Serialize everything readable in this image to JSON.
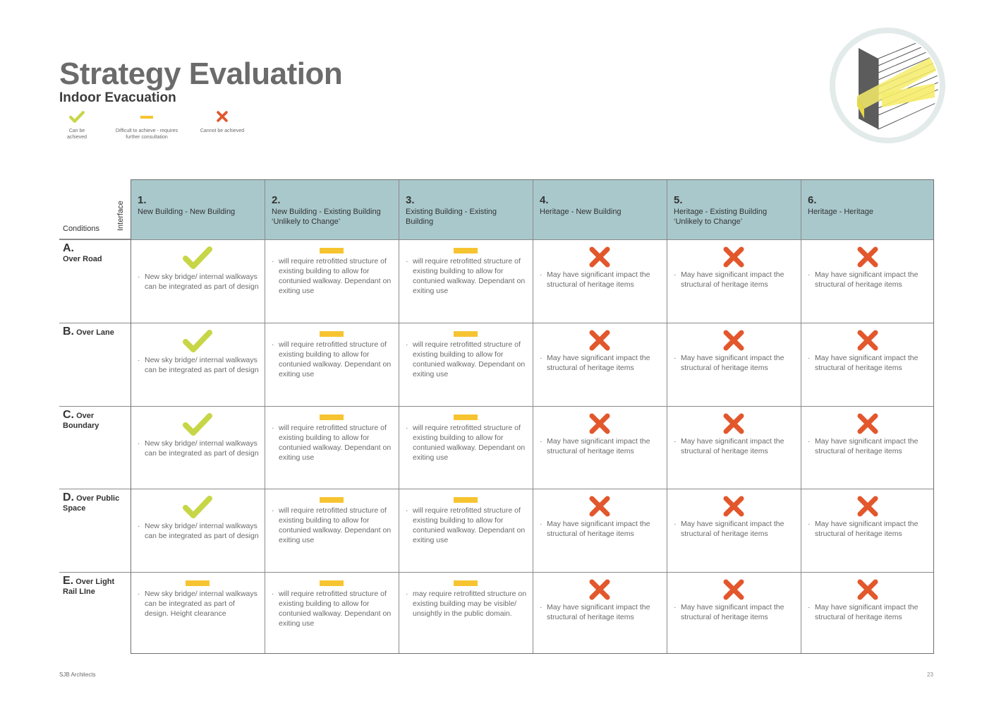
{
  "title": "Strategy Evaluation",
  "subtitle": "Indoor Evacuation",
  "legend": [
    {
      "symbol": "check",
      "label": "Can be achieved"
    },
    {
      "symbol": "dash",
      "label": "Difficult to achieve - requires further consultation"
    },
    {
      "symbol": "cross",
      "label": "Cannot be achieved"
    }
  ],
  "colors": {
    "check": "#c7d646",
    "dash": "#f7c431",
    "cross": "#e2572c",
    "header": "#a9c8cc"
  },
  "table": {
    "conditions_label": "Conditions",
    "interface_label": "Interface",
    "columns": [
      {
        "num": "1.",
        "label": "New Building - New Building"
      },
      {
        "num": "2.",
        "label": "New Building - Existing Building ‘Unlikely to Change’"
      },
      {
        "num": "3.",
        "label": "Existing Building - Existing Building"
      },
      {
        "num": "4.",
        "label": "Heritage - New Building"
      },
      {
        "num": "5.",
        "label": "Heritage - Existing Building ‘Unlikely to Change’"
      },
      {
        "num": "6.",
        "label": "Heritage - Heritage"
      }
    ],
    "rows": [
      {
        "letter": "A.",
        "label": "Over Road",
        "cells": [
          {
            "status": "check",
            "note": "New sky bridge/ internal walkways can be integrated as part of design"
          },
          {
            "status": "dash",
            "note": "will require retrofitted structure of existing building to allow for contunied walkway. Dependant on exiting use"
          },
          {
            "status": "dash",
            "note": "will require retrofitted structure of existing building to allow for contunied walkway. Dependant on exiting use"
          },
          {
            "status": "cross",
            "note": "May have significant impact the structural of heritage items"
          },
          {
            "status": "cross",
            "note": "May have significant impact the structural of heritage items"
          },
          {
            "status": "cross",
            "note": "May have significant impact the structural of heritage items"
          }
        ]
      },
      {
        "letter": "B.",
        "label": "Over Lane",
        "cells": [
          {
            "status": "check",
            "note": "New sky bridge/ internal walkways can be integrated as part of design"
          },
          {
            "status": "dash",
            "note": "will require retrofitted structure of existing building to allow for contunied walkway. Dependant on exiting use"
          },
          {
            "status": "dash",
            "note": "will require retrofitted structure of existing building to allow for contunied walkway. Dependant on exiting use"
          },
          {
            "status": "cross",
            "note": "May have significant impact the structural of heritage items"
          },
          {
            "status": "cross",
            "note": "May have significant impact the structural of heritage items"
          },
          {
            "status": "cross",
            "note": "May have significant impact the structural of heritage items"
          }
        ]
      },
      {
        "letter": "C.",
        "label": "Over Boundary",
        "cells": [
          {
            "status": "check",
            "note": "New sky bridge/ internal walkways can be integrated as part of design"
          },
          {
            "status": "dash",
            "note": "will require retrofitted structure of existing building to allow for contunied walkway. Dependant on exiting use"
          },
          {
            "status": "dash",
            "note": "will require retrofitted structure of existing building to allow for contunied walkway. Dependant on exiting use"
          },
          {
            "status": "cross",
            "note": "May have significant impact the structural of heritage items"
          },
          {
            "status": "cross",
            "note": "May have significant impact the structural of heritage items"
          },
          {
            "status": "cross",
            "note": "May have significant impact the structural of heritage items"
          }
        ]
      },
      {
        "letter": "D.",
        "label": "Over Public Space",
        "cells": [
          {
            "status": "check",
            "note": "New sky bridge/ internal walkways can be integrated as part of design"
          },
          {
            "status": "dash",
            "note": "will require retrofitted structure of existing building to allow for contunied walkway. Dependant on exiting use"
          },
          {
            "status": "dash",
            "note": "will require retrofitted structure of existing building to allow for contunied walkway. Dependant on exiting use"
          },
          {
            "status": "cross",
            "note": "May have significant impact the structural of heritage items"
          },
          {
            "status": "cross",
            "note": "May have significant impact the structural of heritage items"
          },
          {
            "status": "cross",
            "note": "May have significant impact the structural of heritage items"
          }
        ]
      },
      {
        "letter": "E.",
        "label": "Over Light Rail LIne",
        "cells": [
          {
            "status": "dash",
            "note": "New sky bridge/ internal walkways can be integrated as part of design. Height clearance"
          },
          {
            "status": "dash",
            "note": "will require retrofitted structure of existing building to allow for contunied walkway. Dependant on exiting use"
          },
          {
            "status": "dash",
            "note": "may require retrofitted structure on existing building may be visible/ unsightly in the public domain."
          },
          {
            "status": "cross",
            "note": "May have significant impact the structural of heritage items"
          },
          {
            "status": "cross",
            "note": "May have significant impact the structural of heritage items"
          },
          {
            "status": "cross",
            "note": "May have significant impact the structural of heritage items"
          }
        ]
      }
    ]
  },
  "footer": {
    "company": "SJB Architects",
    "page": "23"
  }
}
